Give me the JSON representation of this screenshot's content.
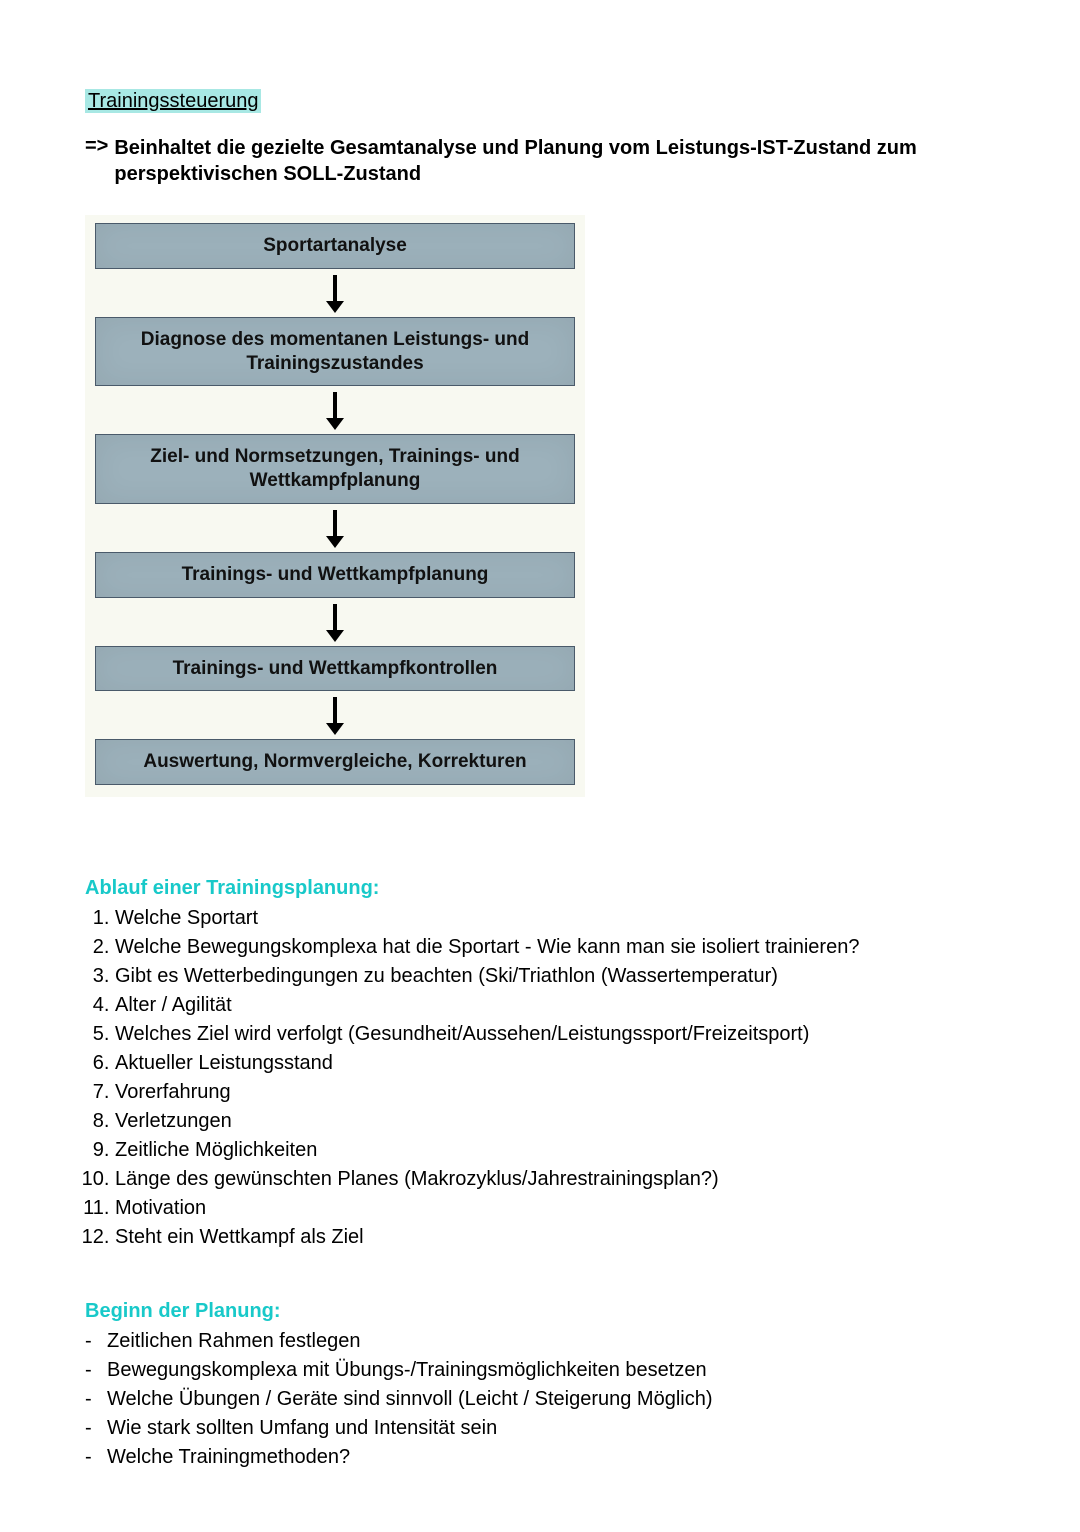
{
  "title": {
    "text": "Trainingssteuerung",
    "highlight_color": "#a8e8e4"
  },
  "lead": {
    "arrow": "=>",
    "text": "Beinhaltet die gezielte Gesamtanalyse und Planung vom Leistungs-IST-Zustand zum perspektivischen SOLL-Zustand"
  },
  "flowchart": {
    "type": "flowchart",
    "background_color": "#f8f9f1",
    "box_fill": "#9cb1bb",
    "box_border": "#4a5a6a",
    "arrow_color": "#000000",
    "text_color": "#111111",
    "font_family": "Arial",
    "font_weight": "bold",
    "box_font_size": 19,
    "arrow_height": 42,
    "nodes": [
      "Sportartanalyse",
      "Diagnose des momentanen Leistungs- und Trainingszustandes",
      "Ziel- und Normsetzungen, Trainings- und Wettkampfplanung",
      "Trainings- und Wettkampfplanung",
      "Trainings- und Wettkampfkontrollen",
      "Auswertung, Normvergleiche, Korrekturen"
    ]
  },
  "section1": {
    "heading": "Ablauf einer Trainingsplanung:",
    "heading_color": "#18c9c9",
    "items": [
      "Welche Sportart",
      "Welche Bewegungskomplexa hat die Sportart - Wie kann man sie isoliert trainieren?",
      "Gibt es Wetterbedingungen zu beachten (Ski/Triathlon (Wassertemperatur)",
      "Alter / Agilität",
      "Welches Ziel wird verfolgt (Gesundheit/Aussehen/Leistungssport/Freizeitsport)",
      "Aktueller Leistungsstand",
      "Vorerfahrung",
      "Verletzungen",
      "Zeitliche Möglichkeiten",
      "Länge des gewünschten Planes (Makrozyklus/Jahrestrainingsplan?)",
      "Motivation",
      "Steht ein Wettkampf als Ziel"
    ]
  },
  "section2": {
    "heading": "Beginn der Planung:",
    "heading_color": "#18c9c9",
    "items": [
      "Zeitlichen Rahmen festlegen",
      "Bewegungskomplexa mit Übungs-/Trainingsmöglichkeiten besetzen",
      "Welche Übungen / Geräte sind sinnvoll (Leicht / Steigerung Möglich)",
      "Wie stark sollten Umfang und Intensität sein",
      "Welche Trainingmethoden?"
    ]
  }
}
